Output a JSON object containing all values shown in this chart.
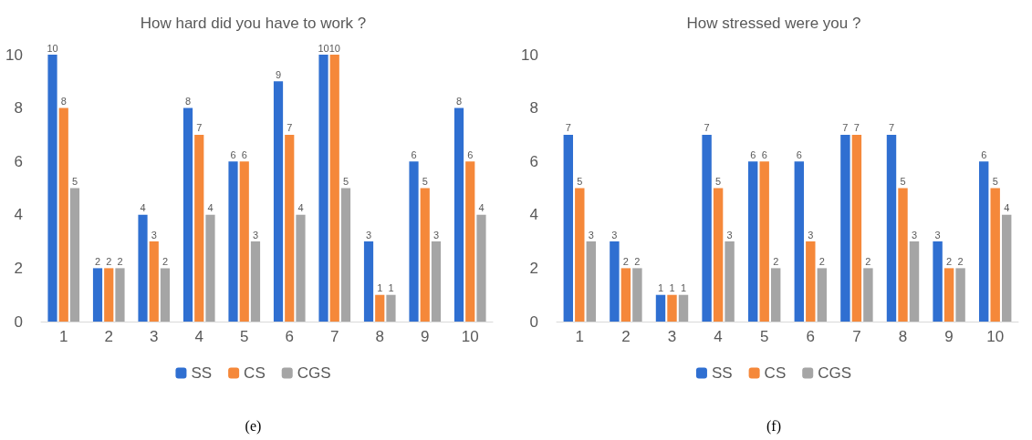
{
  "chart_data": [
    {
      "type": "bar",
      "title": "How hard did you have to work ?",
      "categories": [
        "1",
        "2",
        "3",
        "4",
        "5",
        "6",
        "7",
        "8",
        "9",
        "10"
      ],
      "series": [
        {
          "name": "SS",
          "color": "#2f6fd1",
          "values": [
            10,
            2,
            4,
            8,
            6,
            9,
            10,
            3,
            6,
            8
          ]
        },
        {
          "name": "CS",
          "color": "#f5883a",
          "values": [
            8,
            2,
            3,
            7,
            6,
            7,
            10,
            1,
            5,
            6
          ]
        },
        {
          "name": "CGS",
          "color": "#a5a5a5",
          "values": [
            5,
            2,
            2,
            4,
            3,
            4,
            5,
            1,
            3,
            4
          ]
        }
      ],
      "ylim": [
        0,
        10
      ],
      "yticks": [
        0,
        2,
        4,
        6,
        8,
        10
      ],
      "grid": false,
      "legend": "bottom",
      "data_labels": true,
      "annotations": [
        "(e)"
      ]
    },
    {
      "type": "bar",
      "title": "How stressed were you ?",
      "categories": [
        "1",
        "2",
        "3",
        "4",
        "5",
        "6",
        "7",
        "8",
        "9",
        "10"
      ],
      "series": [
        {
          "name": "SS",
          "color": "#2f6fd1",
          "values": [
            7,
            3,
            1,
            7,
            6,
            6,
            7,
            7,
            3,
            6
          ]
        },
        {
          "name": "CS",
          "color": "#f5883a",
          "values": [
            5,
            2,
            1,
            5,
            6,
            3,
            7,
            5,
            2,
            5
          ]
        },
        {
          "name": "CGS",
          "color": "#a5a5a5",
          "values": [
            3,
            2,
            1,
            3,
            2,
            2,
            2,
            3,
            2,
            4
          ]
        }
      ],
      "ylim": [
        0,
        10
      ],
      "yticks": [
        0,
        2,
        4,
        6,
        8,
        10
      ],
      "grid": false,
      "legend": "bottom",
      "data_labels": true,
      "annotations": [
        "(f)"
      ]
    }
  ]
}
